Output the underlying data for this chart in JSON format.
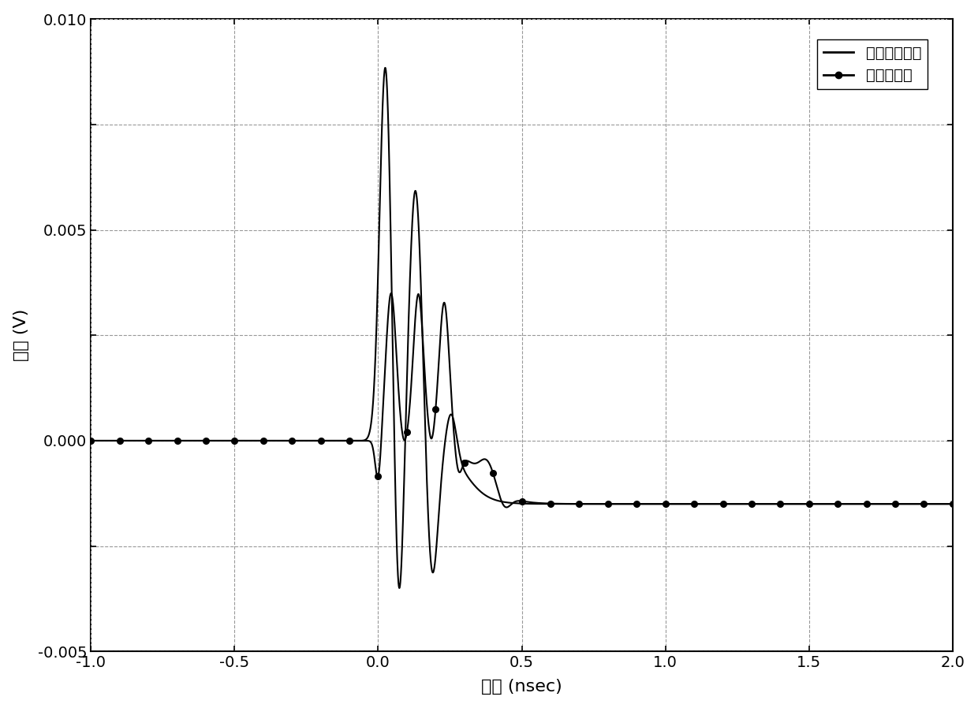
{
  "title": "",
  "xlabel": "时间 (nsec)",
  "ylabel": "电压 (V)",
  "xlim": [
    -1.0,
    2.0
  ],
  "ylim": [
    -0.005,
    0.01
  ],
  "xticks": [
    -1.0,
    -0.5,
    0.0,
    0.5,
    1.0,
    1.5,
    2.0
  ],
  "yticks": [
    -0.005,
    -0.0025,
    0.0,
    0.0025,
    0.005,
    0.0075,
    0.01
  ],
  "ytick_labels": [
    "-0.005",
    "",
    "0.000",
    "",
    "0.005",
    "",
    "0.010"
  ],
  "grid_color": "#aaaaaa",
  "background_color": "#ffffff",
  "legend_labels": [
    "未故障连接器",
    "故障连接器"
  ],
  "line_color": "#000000",
  "figsize": [
    12.4,
    8.98
  ],
  "dpi": 100
}
